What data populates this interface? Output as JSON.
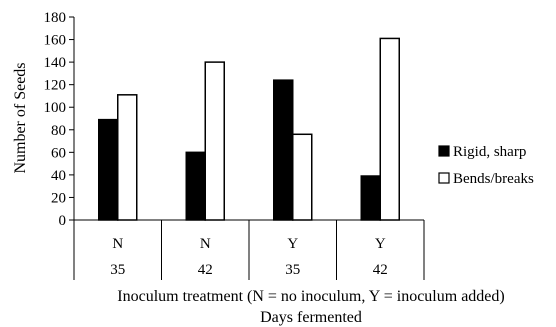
{
  "chart_data": {
    "type": "bar",
    "categories": [
      {
        "treatment": "N",
        "days": "35"
      },
      {
        "treatment": "N",
        "days": "42"
      },
      {
        "treatment": "Y",
        "days": "35"
      },
      {
        "treatment": "Y",
        "days": "42"
      }
    ],
    "series": [
      {
        "name": "Rigid, sharp",
        "values": [
          89,
          60,
          124,
          39
        ],
        "color": "#000000"
      },
      {
        "name": "Bends/breaks",
        "values": [
          111,
          140,
          76,
          161
        ],
        "color": "#ffffff"
      }
    ],
    "title": "",
    "ylabel": "Number of Seeds",
    "xlabel_line1": "Inoculum treatment (N = no inoculum, Y = inoculum added)",
    "xlabel_line2": "Days fermented",
    "ylim": [
      0,
      180
    ],
    "yticks": [
      0,
      20,
      40,
      60,
      80,
      100,
      120,
      140,
      160,
      180
    ],
    "grid": false,
    "legend_position": "right"
  }
}
